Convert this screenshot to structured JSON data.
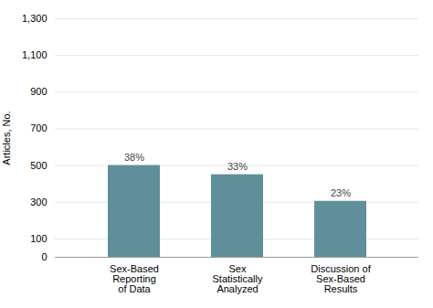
{
  "chart_data": {
    "type": "bar",
    "categories": [
      "Sex-Based\nReporting\nof Data",
      "Sex\nStatistically\nAnalyzed",
      "Discussion of\nSex-Based\nResults"
    ],
    "values": [
      500,
      450,
      305
    ],
    "color": "#5f8f9b",
    "ylabel": "Articles, No.",
    "ylim": [
      0,
      1300
    ],
    "yticks": [
      0,
      100,
      300,
      500,
      700,
      900,
      1100,
      1300
    ],
    "grid": true,
    "annotations": [
      {
        "category": "Sex-Based\nReporting\nof Data",
        "text": "38%"
      },
      {
        "category": "Sex\nStatistically\nAnalyzed",
        "text": "33%"
      },
      {
        "category": "Discussion of\nSex-Based\nResults",
        "text": "23%"
      }
    ]
  }
}
